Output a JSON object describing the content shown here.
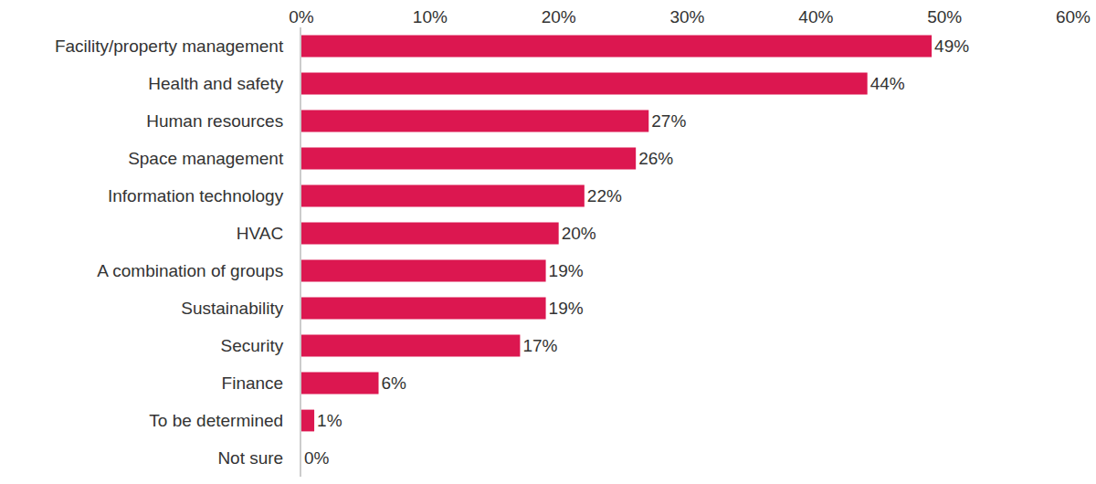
{
  "chart_data": {
    "type": "bar",
    "orientation": "horizontal",
    "categories": [
      "Facility/property management",
      "Health and safety",
      "Human resources",
      "Space management",
      "Information technology",
      "HVAC",
      "A combination of groups",
      "Sustainability",
      "Security",
      "Finance",
      "To be determined",
      "Not sure"
    ],
    "values": [
      49,
      44,
      27,
      26,
      22,
      20,
      19,
      19,
      17,
      6,
      1,
      0
    ],
    "value_labels": [
      "49%",
      "44%",
      "27%",
      "26%",
      "22%",
      "20%",
      "19%",
      "19%",
      "17%",
      "6%",
      "1%",
      "0%"
    ],
    "data_labels": true,
    "color": "#dc1750",
    "xlim": [
      0,
      60
    ],
    "xticks": [
      {
        "value": 0,
        "label": "0%"
      },
      {
        "value": 10,
        "label": "10%"
      },
      {
        "value": 20,
        "label": "20%"
      },
      {
        "value": 30,
        "label": "30%"
      },
      {
        "value": 40,
        "label": "40%"
      },
      {
        "value": 50,
        "label": "50%"
      },
      {
        "value": 60,
        "label": "60%"
      }
    ],
    "grid": false
  }
}
